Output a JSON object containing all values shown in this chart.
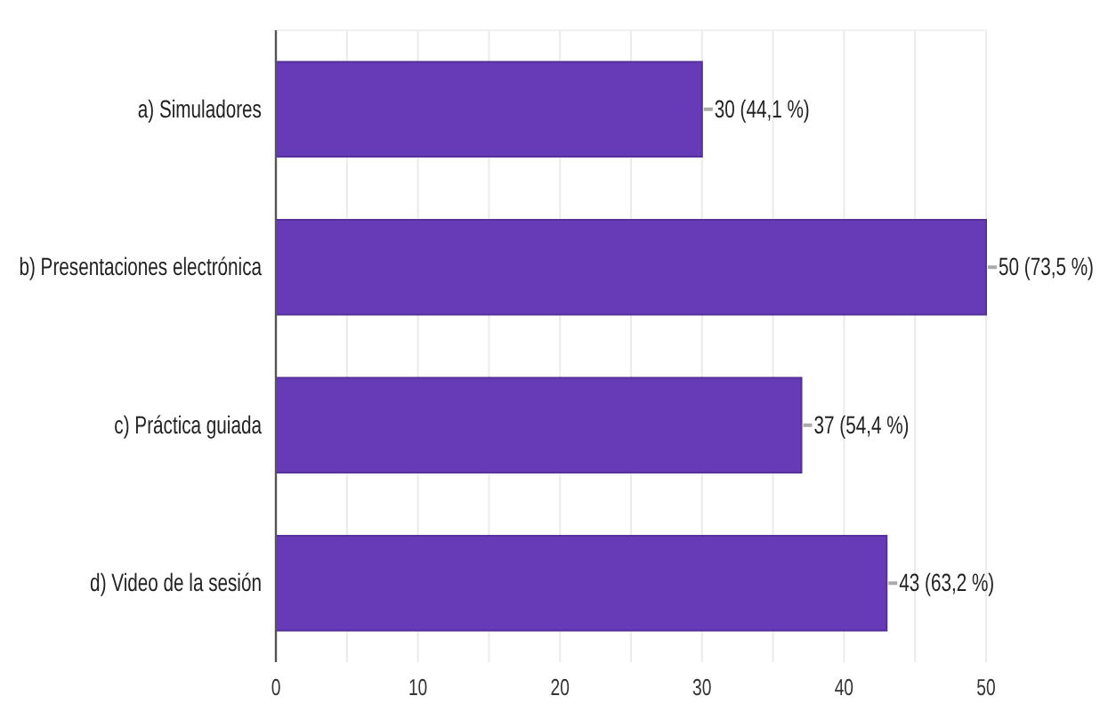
{
  "chart_data": {
    "type": "bar",
    "orientation": "horizontal",
    "categories": [
      "a) Simuladores",
      "b) Presentaciones electrónica",
      "c) Práctica guiada",
      "d) Video de la sesión"
    ],
    "values": [
      30,
      50,
      37,
      43
    ],
    "color": "#673ab7",
    "value_labels": [
      "30 (44,1 %)",
      "50 (73,5 %)",
      "37 (54,4 %)",
      "43 (63,2 %)"
    ],
    "xlim": [
      0,
      50
    ],
    "xticks": [
      0,
      {
        "value": 5,
        "label": null
      },
      10,
      {
        "value": 15,
        "label": null
      },
      20,
      {
        "value": 25,
        "label": null
      },
      30,
      {
        "value": 35,
        "label": null
      },
      40,
      {
        "value": 45,
        "label": null
      },
      50
    ],
    "grid": "x"
  }
}
